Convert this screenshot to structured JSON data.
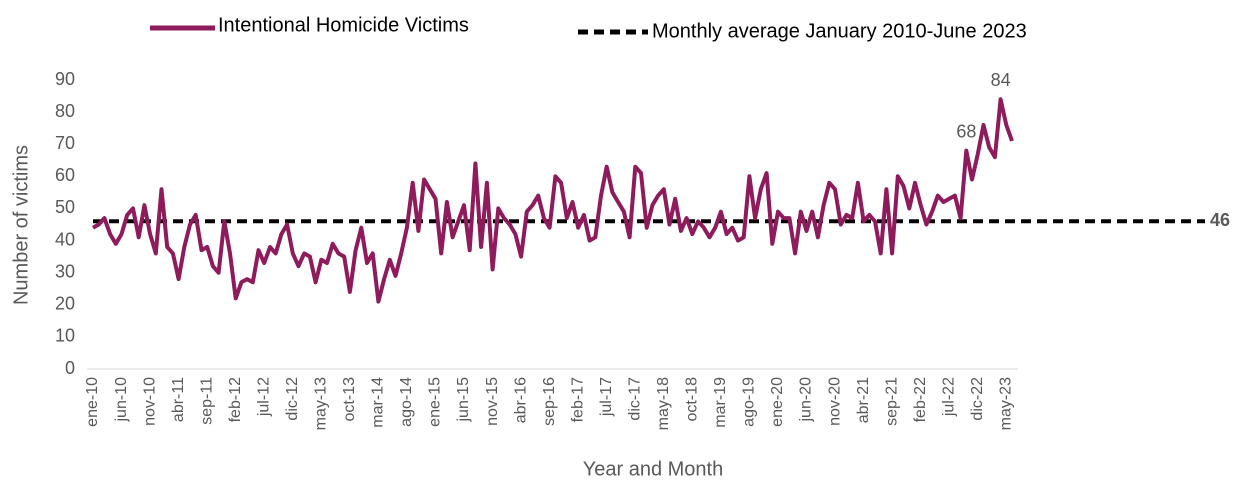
{
  "chart_data": {
    "type": "line",
    "xlabel": "Year and Month",
    "ylabel": "Number of victims",
    "ylim": [
      0,
      90
    ],
    "yticks": [
      0,
      10,
      20,
      30,
      40,
      50,
      60,
      70,
      80,
      90
    ],
    "grid": false,
    "legend": "top",
    "categories": [
      "ene-10",
      null,
      null,
      null,
      null,
      "jun-10",
      null,
      null,
      null,
      null,
      "nov-10",
      null,
      null,
      null,
      null,
      "abr-11",
      null,
      null,
      null,
      null,
      "sep-11",
      null,
      null,
      null,
      null,
      "feb-12",
      null,
      null,
      null,
      null,
      "jul-12",
      null,
      null,
      null,
      null,
      "dic-12",
      null,
      null,
      null,
      null,
      "may-13",
      null,
      null,
      null,
      null,
      "oct-13",
      null,
      null,
      null,
      null,
      "mar-14",
      null,
      null,
      null,
      null,
      "ago-14",
      null,
      null,
      null,
      null,
      "ene-15",
      null,
      null,
      null,
      null,
      "jun-15",
      null,
      null,
      null,
      null,
      "nov-15",
      null,
      null,
      null,
      null,
      "abr-16",
      null,
      null,
      null,
      null,
      "sep-16",
      null,
      null,
      null,
      null,
      "feb-17",
      null,
      null,
      null,
      null,
      "jul-17",
      null,
      null,
      null,
      null,
      "dic-17",
      null,
      null,
      null,
      null,
      "may-18",
      null,
      null,
      null,
      null,
      "oct-18",
      null,
      null,
      null,
      null,
      "mar-19",
      null,
      null,
      null,
      null,
      "ago-19",
      null,
      null,
      null,
      null,
      "ene-20",
      null,
      null,
      null,
      null,
      "jun-20",
      null,
      null,
      null,
      null,
      "nov-20",
      null,
      null,
      null,
      null,
      "abr-21",
      null,
      null,
      null,
      null,
      "sep-21",
      null,
      null,
      null,
      null,
      "feb-22",
      null,
      null,
      null,
      null,
      "jul-22",
      null,
      null,
      null,
      null,
      "dic-22",
      null,
      null,
      null,
      null,
      "may-23",
      null
    ],
    "series": [
      {
        "name": "Intentional Homicide Victims",
        "color": "#8e1b5c",
        "values": [
          44,
          45,
          47,
          42,
          39,
          42,
          48,
          50,
          41,
          51,
          42,
          36,
          56,
          38,
          36,
          28,
          38,
          45,
          48,
          37,
          38,
          32,
          30,
          46,
          36,
          22,
          27,
          28,
          27,
          37,
          33,
          38,
          36,
          42,
          45,
          36,
          32,
          36,
          35,
          27,
          34,
          33,
          39,
          36,
          35,
          24,
          37,
          44,
          33,
          36,
          21,
          28,
          34,
          29,
          36,
          44,
          58,
          43,
          59,
          56,
          53,
          36,
          52,
          41,
          46,
          51,
          37,
          64,
          38,
          58,
          31,
          50,
          47,
          45,
          42,
          35,
          49,
          51,
          54,
          47,
          44,
          60,
          58,
          47,
          52,
          44,
          48,
          40,
          41,
          54,
          63,
          55,
          52,
          49,
          41,
          63,
          61,
          44,
          51,
          54,
          56,
          45,
          53,
          43,
          47,
          42,
          46,
          44,
          41,
          44,
          49,
          42,
          44,
          40,
          41,
          60,
          47,
          56,
          61,
          39,
          49,
          47,
          47,
          36,
          49,
          43,
          49,
          41,
          51,
          58,
          56,
          45,
          48,
          47,
          58,
          46,
          48,
          46,
          36,
          56,
          36,
          60,
          57,
          50,
          58,
          51,
          45,
          49,
          54,
          52,
          53,
          54,
          47,
          68,
          59,
          67,
          76,
          69,
          66,
          84,
          76,
          71
        ]
      }
    ],
    "labeled_points": [
      153,
      159
    ],
    "reference_line": {
      "name": "Monthly average January 2010-June 2023",
      "value": 46,
      "color": "#000000"
    }
  }
}
